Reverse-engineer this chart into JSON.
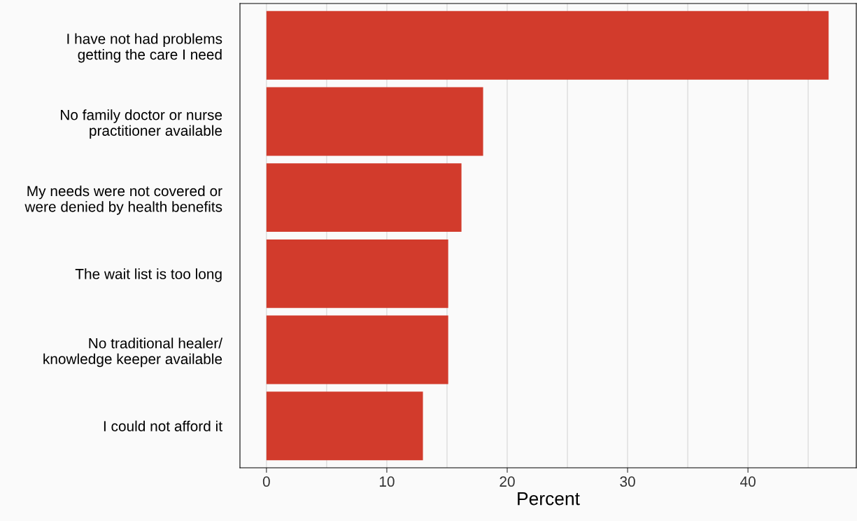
{
  "chart_data": {
    "type": "bar",
    "orientation": "horizontal",
    "xlabel": "Percent",
    "categories": [
      "I have not had problems\ngetting the care I need",
      "No family doctor or nurse\npractitioner available",
      "My needs were not covered or\nwere denied by health benefits",
      "The wait list is too long",
      "No traditional healer/\nknowledge keeper available",
      "I could not afford it"
    ],
    "values": [
      46.7,
      18.0,
      16.2,
      15.1,
      15.1,
      13.0
    ],
    "color": "#d23b2c",
    "xlim": [
      -2.2,
      49.0
    ],
    "xticks": [
      0,
      {
        "value": 5,
        "label": null
      },
      10,
      {
        "value": 15,
        "label": null
      },
      20,
      {
        "value": 25,
        "label": null
      },
      30,
      {
        "value": 35,
        "label": null
      },
      40,
      {
        "value": 45,
        "label": null
      }
    ],
    "grid": "x"
  }
}
